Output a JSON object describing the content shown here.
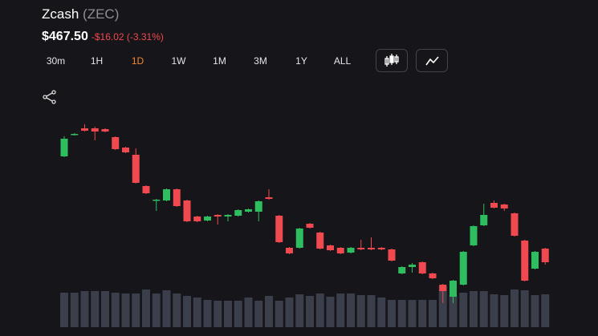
{
  "header": {
    "name": "Zcash",
    "ticker": "(ZEC)",
    "price": "$467.50",
    "change": "-$16.02 (-3.31%)"
  },
  "timeframes": [
    "30m",
    "1H",
    "1D",
    "1W",
    "1M",
    "3M",
    "1Y",
    "ALL"
  ],
  "selected_index": 2,
  "chart_data": {
    "type": "candlestick",
    "up_color": "#2ebd5f",
    "down_color": "#f0494f",
    "volume_color": "#3a3f4b",
    "ylim": [
      441,
      556
    ],
    "open": [
      533.5,
      547,
      551,
      551,
      550.5,
      545.5,
      539,
      534.5,
      515,
      506,
      506,
      513,
      506,
      496,
      493.5,
      497,
      496,
      496.5,
      499,
      499,
      508,
      496.5,
      476.5,
      476.5,
      491.5,
      486,
      478,
      476.5,
      473.5,
      476.5,
      476.5,
      476.5,
      475.5,
      460.5,
      464.5,
      467.5,
      460.5,
      453.5,
      446,
      453.5,
      478,
      490.5,
      504.5,
      503.5,
      498,
      481,
      463.5,
      476
    ],
    "high": [
      546,
      548,
      553.5,
      552,
      551,
      546,
      539.5,
      538.5,
      515.5,
      507,
      513.5,
      513.5,
      506.5,
      496.5,
      496.5,
      497.5,
      497.5,
      500.5,
      501,
      506,
      513,
      497,
      477,
      489,
      492,
      486.5,
      478.5,
      477,
      477,
      481.5,
      483,
      477,
      476,
      465,
      467,
      468,
      461,
      454,
      456.5,
      474.5,
      490.5,
      504,
      506,
      504,
      498.5,
      481.5,
      474.5,
      476.5
    ],
    "low": [
      533,
      546.5,
      549,
      543.5,
      548.5,
      537.5,
      535.5,
      516.5,
      510,
      499.5,
      505.5,
      502,
      492.5,
      492.5,
      493,
      491,
      493,
      496,
      498.5,
      493,
      506.5,
      479.5,
      472.5,
      476,
      488.5,
      475.5,
      474.5,
      472.5,
      473,
      475,
      475,
      475,
      468,
      460,
      461,
      460,
      457,
      442,
      442,
      453,
      477.5,
      490,
      501,
      499.5,
      483.5,
      455.5,
      463,
      466
    ],
    "close": [
      544.5,
      547.5,
      549.5,
      549,
      549,
      538,
      536,
      517,
      510.5,
      506.5,
      513,
      502.5,
      493,
      493,
      496,
      496,
      497,
      500,
      500.5,
      505.5,
      507,
      480,
      473,
      488.5,
      489,
      476,
      475,
      473,
      476.5,
      475.5,
      475.5,
      475.5,
      468.5,
      464.5,
      466,
      460.5,
      457.5,
      449.5,
      456,
      474,
      490,
      497,
      501.5,
      501,
      484,
      456,
      474,
      467.5
    ],
    "volume": [
      43,
      43,
      45,
      45,
      45,
      43,
      42,
      42,
      47,
      42,
      46,
      42,
      39,
      37,
      34,
      33,
      33,
      33,
      37,
      33,
      39,
      33,
      37,
      41,
      39,
      42,
      38,
      42,
      42,
      40,
      40,
      37,
      34,
      34,
      34,
      34,
      34,
      51,
      40,
      43,
      45,
      45,
      41,
      40,
      47,
      46,
      40,
      41
    ]
  }
}
